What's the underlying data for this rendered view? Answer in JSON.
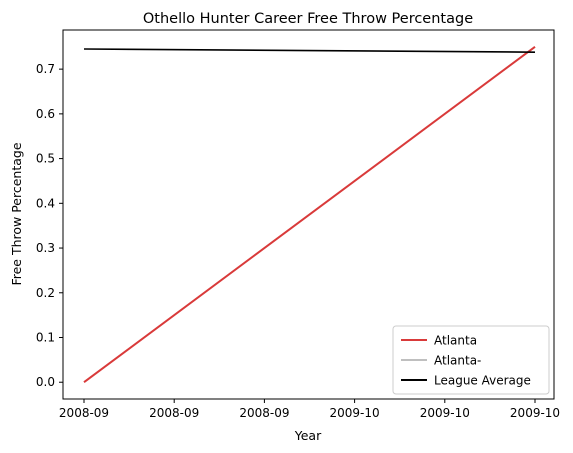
{
  "chart_data": {
    "type": "line",
    "title": "Othello Hunter Career Free Throw Percentage",
    "xlabel": "Year",
    "ylabel": "Free Throw Percentage",
    "x_tick_labels": [
      "2008-09",
      "2008-09",
      "2008-09",
      "2009-10",
      "2009-10",
      "2009-10"
    ],
    "x_categories": [
      "2008-09",
      "2009-10"
    ],
    "y_ticks": [
      0.0,
      0.1,
      0.2,
      0.3,
      0.4,
      0.5,
      0.6,
      0.7
    ],
    "y_tick_labels": [
      "0.0",
      "0.1",
      "0.2",
      "0.3",
      "0.4",
      "0.5",
      "0.6",
      "0.7"
    ],
    "ylim": [
      -0.0375,
      0.7875
    ],
    "series": [
      {
        "name": "Atlanta",
        "color": "#d93a3a",
        "x": [
          "2008-09",
          "2009-10"
        ],
        "values": [
          0.0,
          0.75
        ]
      },
      {
        "name": "Atlanta-",
        "color": "#bfbfbf",
        "x": [],
        "values": []
      },
      {
        "name": "League Average",
        "color": "#000000",
        "x": [
          "2008-09",
          "2009-10"
        ],
        "values": [
          0.745,
          0.738
        ]
      }
    ],
    "legend_position": "lower-right",
    "grid": false
  }
}
